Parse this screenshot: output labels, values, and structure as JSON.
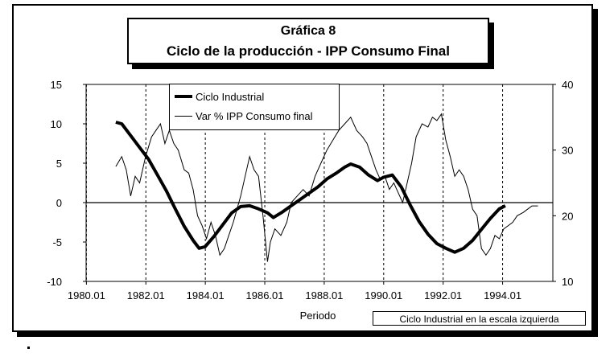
{
  "header": {
    "title_line1": "Gráfica 8",
    "title_line2": "Ciclo de la producción - IPP Consumo Final"
  },
  "note": "Ciclo Industrial en la escala izquierda",
  "chart_data": {
    "type": "line",
    "title": "Ciclo de la producción - IPP Consumo Final",
    "xlabel": "Periodo",
    "x_ticks": [
      "1980.01",
      "1982.01",
      "1984.01",
      "1986.01",
      "1988.01",
      "1990.01",
      "1992.01",
      "1994.01"
    ],
    "xlim": [
      1980.0,
      1995.7
    ],
    "y_left": {
      "ticks": [
        "15",
        "10",
        "5",
        "0",
        "-5",
        "-10"
      ],
      "lim": [
        -10,
        15
      ]
    },
    "y_right": {
      "ticks": [
        "40",
        "30",
        "20",
        "10"
      ],
      "lim": [
        10,
        40
      ]
    },
    "grid": "dashed vertical lines at x ticks",
    "legend_position": "top-left",
    "series": [
      {
        "name": "Ciclo Industrial",
        "axis": "left",
        "style": "thick",
        "color": "#000000",
        "points": [
          [
            1981.0,
            10.2
          ],
          [
            1981.2,
            10.0
          ],
          [
            1981.5,
            8.5
          ],
          [
            1981.8,
            7.0
          ],
          [
            1982.1,
            5.5
          ],
          [
            1982.4,
            3.5
          ],
          [
            1982.7,
            1.5
          ],
          [
            1983.0,
            -0.8
          ],
          [
            1983.3,
            -3.0
          ],
          [
            1983.6,
            -4.8
          ],
          [
            1983.8,
            -5.8
          ],
          [
            1984.0,
            -5.6
          ],
          [
            1984.3,
            -4.3
          ],
          [
            1984.6,
            -2.8
          ],
          [
            1984.9,
            -1.3
          ],
          [
            1985.2,
            -0.5
          ],
          [
            1985.5,
            -0.4
          ],
          [
            1985.8,
            -0.8
          ],
          [
            1986.1,
            -1.3
          ],
          [
            1986.3,
            -1.9
          ],
          [
            1986.6,
            -1.2
          ],
          [
            1986.9,
            -0.4
          ],
          [
            1987.2,
            0.4
          ],
          [
            1987.5,
            1.2
          ],
          [
            1987.8,
            2.0
          ],
          [
            1988.1,
            3.0
          ],
          [
            1988.4,
            3.7
          ],
          [
            1988.7,
            4.5
          ],
          [
            1988.9,
            4.9
          ],
          [
            1989.2,
            4.5
          ],
          [
            1989.5,
            3.5
          ],
          [
            1989.8,
            2.8
          ],
          [
            1990.0,
            3.2
          ],
          [
            1990.3,
            3.5
          ],
          [
            1990.6,
            2.0
          ],
          [
            1990.9,
            -0.3
          ],
          [
            1991.2,
            -2.4
          ],
          [
            1991.5,
            -4.0
          ],
          [
            1991.8,
            -5.2
          ],
          [
            1992.1,
            -5.8
          ],
          [
            1992.4,
            -6.3
          ],
          [
            1992.7,
            -5.8
          ],
          [
            1993.0,
            -4.8
          ],
          [
            1993.3,
            -3.4
          ],
          [
            1993.6,
            -2.0
          ],
          [
            1993.9,
            -0.8
          ],
          [
            1994.1,
            -0.4
          ]
        ]
      },
      {
        "name": "Var % IPP Consumo final",
        "axis": "right",
        "style": "thin",
        "color": "#000000",
        "points": [
          [
            1981.0,
            27.5
          ],
          [
            1981.2,
            29.0
          ],
          [
            1981.35,
            27.0
          ],
          [
            1981.5,
            23.0
          ],
          [
            1981.65,
            26.0
          ],
          [
            1981.8,
            25.0
          ],
          [
            1982.0,
            29.0
          ],
          [
            1982.2,
            32.0
          ],
          [
            1982.35,
            33.0
          ],
          [
            1982.5,
            34.0
          ],
          [
            1982.65,
            31.0
          ],
          [
            1982.8,
            33.0
          ],
          [
            1982.95,
            31.0
          ],
          [
            1983.1,
            30.0
          ],
          [
            1983.3,
            27.0
          ],
          [
            1983.45,
            26.5
          ],
          [
            1983.6,
            24.0
          ],
          [
            1983.75,
            20.0
          ],
          [
            1983.9,
            18.5
          ],
          [
            1984.05,
            16.5
          ],
          [
            1984.2,
            19.0
          ],
          [
            1984.35,
            17.0
          ],
          [
            1984.5,
            14.0
          ],
          [
            1984.65,
            15.0
          ],
          [
            1984.8,
            17.0
          ],
          [
            1984.95,
            19.0
          ],
          [
            1985.2,
            23.0
          ],
          [
            1985.35,
            26.0
          ],
          [
            1985.5,
            29.0
          ],
          [
            1985.65,
            27.0
          ],
          [
            1985.8,
            26.0
          ],
          [
            1985.95,
            20.0
          ],
          [
            1986.1,
            13.0
          ],
          [
            1986.2,
            16.0
          ],
          [
            1986.35,
            18.0
          ],
          [
            1986.55,
            17.0
          ],
          [
            1986.75,
            19.0
          ],
          [
            1986.9,
            22.0
          ],
          [
            1987.1,
            23.0
          ],
          [
            1987.3,
            24.0
          ],
          [
            1987.5,
            23.0
          ],
          [
            1987.7,
            26.0
          ],
          [
            1987.9,
            28.0
          ],
          [
            1988.1,
            30.0
          ],
          [
            1988.3,
            31.5
          ],
          [
            1988.5,
            33.0
          ],
          [
            1988.7,
            34.0
          ],
          [
            1988.9,
            35.0
          ],
          [
            1989.1,
            33.0
          ],
          [
            1989.3,
            32.0
          ],
          [
            1989.45,
            31.0
          ],
          [
            1989.6,
            29.0
          ],
          [
            1989.75,
            27.0
          ],
          [
            1989.9,
            25.5
          ],
          [
            1990.05,
            26.0
          ],
          [
            1990.2,
            24.0
          ],
          [
            1990.35,
            25.0
          ],
          [
            1990.5,
            23.5
          ],
          [
            1990.65,
            22.0
          ],
          [
            1990.8,
            25.0
          ],
          [
            1990.95,
            28.0
          ],
          [
            1991.1,
            32.0
          ],
          [
            1991.3,
            34.0
          ],
          [
            1991.5,
            33.5
          ],
          [
            1991.65,
            35.0
          ],
          [
            1991.8,
            34.5
          ],
          [
            1991.95,
            35.5
          ],
          [
            1992.1,
            31.5
          ],
          [
            1992.25,
            29.0
          ],
          [
            1992.4,
            26.0
          ],
          [
            1992.55,
            27.0
          ],
          [
            1992.7,
            26.0
          ],
          [
            1992.85,
            24.0
          ],
          [
            1993.0,
            21.0
          ],
          [
            1993.15,
            20.0
          ],
          [
            1993.3,
            15.0
          ],
          [
            1993.45,
            14.0
          ],
          [
            1993.6,
            15.0
          ],
          [
            1993.75,
            17.0
          ],
          [
            1993.9,
            16.5
          ],
          [
            1994.05,
            18.0
          ],
          [
            1994.2,
            18.5
          ],
          [
            1994.35,
            19.0
          ],
          [
            1994.5,
            20.0
          ],
          [
            1994.7,
            20.5
          ],
          [
            1994.85,
            21.0
          ],
          [
            1995.0,
            21.5
          ],
          [
            1995.2,
            21.5
          ]
        ]
      }
    ]
  }
}
